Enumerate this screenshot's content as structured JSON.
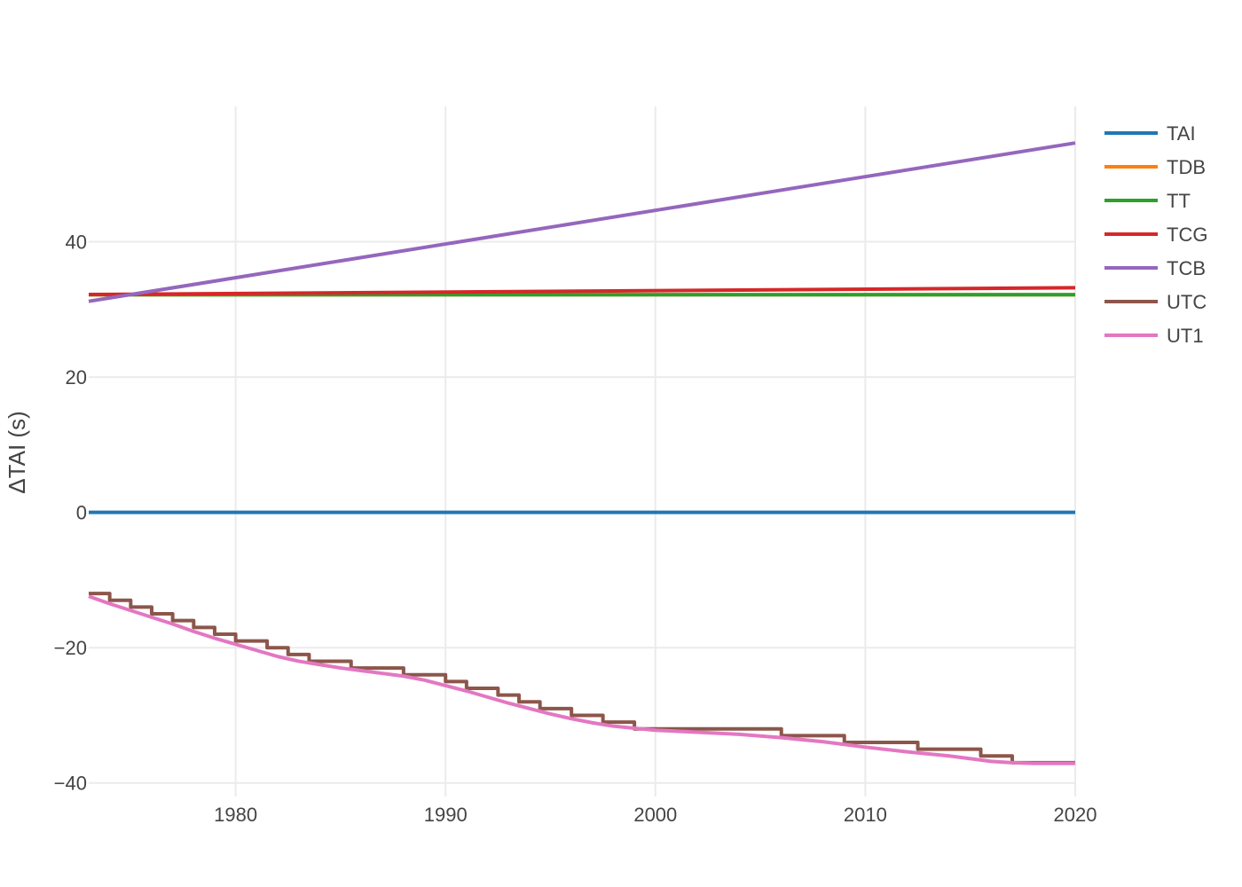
{
  "chart_data": {
    "type": "line",
    "title": "",
    "xlabel": "",
    "ylabel": "ΔTAI (s)",
    "xlim": [
      1973,
      2020
    ],
    "ylim": [
      -42,
      60
    ],
    "xticks": [
      1980,
      1990,
      2000,
      2010,
      2020
    ],
    "yticks": [
      -40,
      -20,
      0,
      20,
      40
    ],
    "grid": true,
    "legend_position": "top-right",
    "series": [
      {
        "name": "TAI",
        "color": "#1f77b4",
        "x": [
          1973,
          2020
        ],
        "y": [
          0,
          0
        ]
      },
      {
        "name": "TDB",
        "color": "#ff7f0e",
        "x": [
          1973,
          2020
        ],
        "y": [
          32.18,
          32.18
        ]
      },
      {
        "name": "TT",
        "color": "#2ca02c",
        "x": [
          1973,
          2020
        ],
        "y": [
          32.18,
          32.18
        ]
      },
      {
        "name": "TCG",
        "color": "#d62728",
        "x": [
          1973,
          2020
        ],
        "y": [
          32.2,
          33.2
        ]
      },
      {
        "name": "TCB",
        "color": "#9467bd",
        "x": [
          1973,
          2020
        ],
        "y": [
          31.2,
          54.6
        ]
      },
      {
        "name": "UTC",
        "color": "#8c564b",
        "step": true,
        "x": [
          1973.0,
          1974.0,
          1975.0,
          1976.0,
          1977.0,
          1978.0,
          1979.0,
          1980.0,
          1981.5,
          1982.5,
          1983.5,
          1985.5,
          1988.0,
          1990.0,
          1991.0,
          1992.5,
          1993.5,
          1994.5,
          1996.0,
          1997.5,
          1999.0,
          2006.0,
          2009.0,
          2012.5,
          2015.5,
          2017.0,
          2020.0
        ],
        "y": [
          -12,
          -13,
          -14,
          -15,
          -16,
          -17,
          -18,
          -19,
          -20,
          -21,
          -22,
          -23,
          -24,
          -25,
          -26,
          -27,
          -28,
          -29,
          -30,
          -31,
          -32,
          -33,
          -34,
          -35,
          -36,
          -37,
          -37
        ]
      },
      {
        "name": "UT1",
        "color": "#e377c2",
        "x": [
          1973,
          1974,
          1975,
          1976,
          1977,
          1978,
          1979,
          1980,
          1981,
          1982,
          1983,
          1984,
          1985,
          1986,
          1987,
          1988,
          1989,
          1990,
          1991,
          1992,
          1993,
          1994,
          1995,
          1996,
          1997,
          1998,
          1999,
          2000,
          2002,
          2004,
          2006,
          2008,
          2010,
          2012,
          2014,
          2016,
          2017,
          2018,
          2020
        ],
        "y": [
          -12.4,
          -13.5,
          -14.5,
          -15.5,
          -16.5,
          -17.6,
          -18.6,
          -19.5,
          -20.4,
          -21.3,
          -22.0,
          -22.5,
          -23.0,
          -23.4,
          -23.8,
          -24.2,
          -24.8,
          -25.6,
          -26.4,
          -27.3,
          -28.2,
          -29.0,
          -29.8,
          -30.5,
          -31.1,
          -31.6,
          -31.9,
          -32.2,
          -32.5,
          -32.8,
          -33.3,
          -33.9,
          -34.7,
          -35.4,
          -36.0,
          -36.8,
          -37.0,
          -37.1,
          -37.1
        ]
      }
    ]
  }
}
